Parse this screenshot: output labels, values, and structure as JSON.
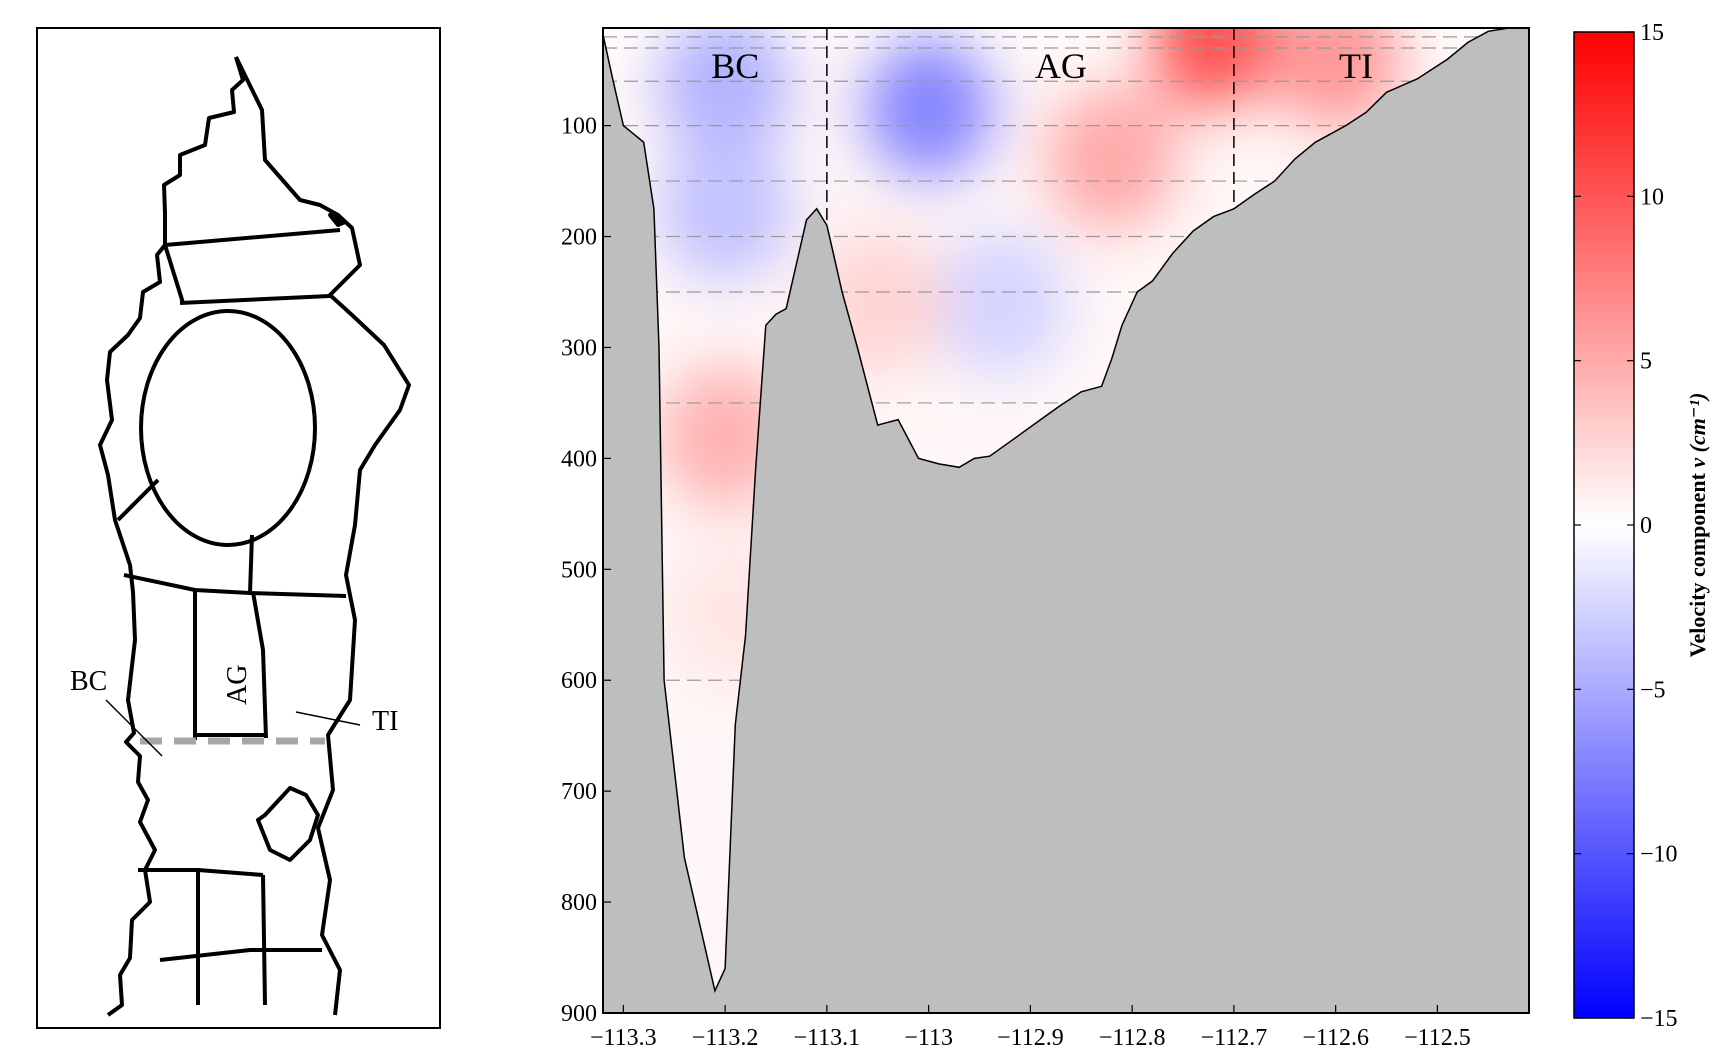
{
  "map_panel": {
    "labels": {
      "bc": "BC",
      "ag": "AG",
      "ti": "TI"
    },
    "transect_color": "#a6a6a6"
  },
  "chart_data": {
    "type": "heatmap",
    "title": "",
    "xlabel": "",
    "ylabel": "",
    "xlim": [
      -113.32,
      -112.41
    ],
    "ylim": [
      900,
      12
    ],
    "y_inverted": true,
    "x_ticks": [
      -113.3,
      -113.2,
      -113.1,
      -113,
      -112.9,
      -112.8,
      -112.7,
      -112.6,
      -112.5
    ],
    "x_tick_labels": [
      "−113.3",
      "−113.2",
      "−113.1",
      "−113",
      "−112.9",
      "−112.8",
      "−112.7",
      "−112.6",
      "−112.5"
    ],
    "y_ticks": [
      100,
      200,
      300,
      400,
      500,
      600,
      700,
      800,
      900
    ],
    "y_tick_labels": [
      "100",
      "200",
      "300",
      "400",
      "500",
      "600",
      "700",
      "800",
      "900"
    ],
    "region_labels": [
      {
        "text": "BC",
        "x": -113.19,
        "y": 30
      },
      {
        "text": "AG",
        "x": -112.87,
        "y": 30
      },
      {
        "text": "TI",
        "x": -112.58,
        "y": 30
      }
    ],
    "region_boundaries_x": [
      -113.1,
      -112.7
    ],
    "grid_depths": [
      20,
      30,
      60,
      100,
      150,
      200,
      250,
      350,
      600
    ],
    "bathymetry": {
      "x": [
        -113.32,
        -113.31,
        -113.3,
        -113.28,
        -113.27,
        -113.265,
        -113.26,
        -113.24,
        -113.22,
        -113.21,
        -113.2,
        -113.19,
        -113.185,
        -113.18,
        -113.17,
        -113.16,
        -113.15,
        -113.14,
        -113.12,
        -113.11,
        -113.1,
        -113.095,
        -113.085,
        -113.07,
        -113.05,
        -113.03,
        -113.01,
        -112.99,
        -112.97,
        -112.955,
        -112.94,
        -112.92,
        -112.89,
        -112.87,
        -112.85,
        -112.83,
        -112.82,
        -112.81,
        -112.795,
        -112.78,
        -112.76,
        -112.74,
        -112.72,
        -112.7,
        -112.68,
        -112.66,
        -112.64,
        -112.62,
        -112.59,
        -112.57,
        -112.55,
        -112.52,
        -112.49,
        -112.47,
        -112.45,
        -112.43
      ],
      "y": [
        18,
        60,
        100,
        115,
        175,
        300,
        600,
        760,
        840,
        880,
        860,
        640,
        600,
        560,
        410,
        280,
        270,
        265,
        185,
        175,
        190,
        210,
        250,
        300,
        370,
        365,
        400,
        405,
        408,
        400,
        398,
        385,
        365,
        352,
        340,
        335,
        310,
        280,
        250,
        240,
        215,
        195,
        182,
        175,
        162,
        150,
        130,
        115,
        100,
        88,
        70,
        58,
        40,
        25,
        15,
        12
      ]
    },
    "color_scale": {
      "label": "Velocity component",
      "label_math": "v (cm⁻¹)",
      "min": -15,
      "max": 15,
      "colors": [
        "#0000ff",
        "#ffffff",
        "#ff0000"
      ],
      "ticks": [
        15,
        10,
        5,
        0,
        -5,
        -10,
        -15
      ],
      "tick_labels": [
        "15",
        "10",
        "5",
        "0",
        "−5",
        "−10",
        "−15"
      ]
    },
    "velocity_anomalies": [
      {
        "x": -113.2,
        "y": 65,
        "value": -4.5
      },
      {
        "x": -113.2,
        "y": 175,
        "value": -3.5
      },
      {
        "x": -113.2,
        "y": 380,
        "value": 4.5
      },
      {
        "x": -113.19,
        "y": 540,
        "value": 1.5
      },
      {
        "x": -113.0,
        "y": 85,
        "value": -7.0
      },
      {
        "x": -112.93,
        "y": 260,
        "value": -2.5
      },
      {
        "x": -113.05,
        "y": 260,
        "value": 2.5
      },
      {
        "x": -112.72,
        "y": 25,
        "value": 10.0
      },
      {
        "x": -112.82,
        "y": 130,
        "value": 5.0
      },
      {
        "x": -112.6,
        "y": 40,
        "value": 6.0
      }
    ],
    "background_value": 0.5,
    "land_color": "#bebebe",
    "grid_color": "#999999"
  }
}
